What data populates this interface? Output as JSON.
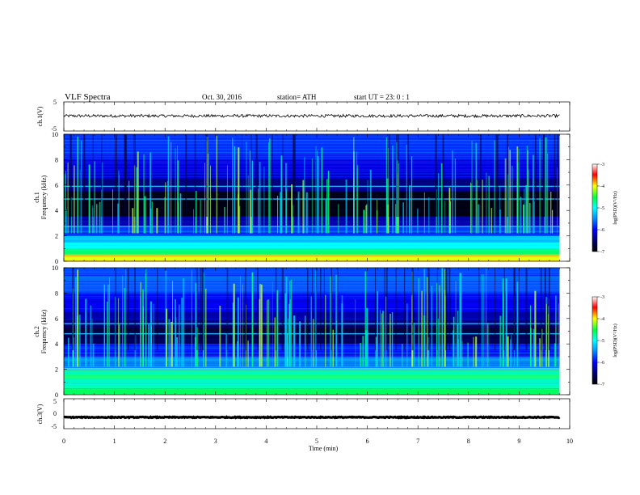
{
  "header": {
    "title": "VLF  Spectra",
    "date": "Oct. 30, 2016",
    "station": "station= ATH",
    "start_ut": "start  UT  =    23: 0   : 1"
  },
  "colors": {
    "scale": [
      "#000000",
      "#00006e",
      "#0000ff",
      "#0090ff",
      "#00ffff",
      "#00ff40",
      "#ffff00",
      "#ff0000",
      "#ffffff"
    ]
  },
  "chart_data": [
    {
      "type": "line",
      "panel": "ch1-waveform",
      "ylabel": "ch.1(V)",
      "ylim": [
        -5,
        5
      ],
      "yticks": [
        "5",
        "-5"
      ],
      "xlim": [
        0,
        10
      ],
      "description_values": {
        "baseline_v": 0.2,
        "noise_amplitude_v": 0.5,
        "data_end_min": 9.8
      }
    },
    {
      "type": "heatmap",
      "panel": "ch1-spectrogram",
      "ylabel": "ch.1\nFrequency  (kHz)",
      "ylim": [
        0,
        10
      ],
      "yticks": [
        "0",
        "2",
        "4",
        "6",
        "8",
        "10"
      ],
      "xlim": [
        0,
        10
      ],
      "data_end_min": 9.8,
      "colorbar": {
        "label": "log(PSD)(V²/Hz)",
        "range": [
          -7,
          -3
        ],
        "ticks": [
          "-3",
          "-4",
          "-5",
          "-6",
          "-7"
        ]
      },
      "bands": [
        {
          "f_min": 0,
          "f_max": 0.5,
          "log_psd": -4.0
        },
        {
          "f_min": 0.5,
          "f_max": 1.0,
          "log_psd": -4.7
        },
        {
          "f_min": 1.0,
          "f_max": 1.5,
          "log_psd": -5.0
        },
        {
          "f_min": 1.5,
          "f_max": 2.0,
          "log_psd": -5.3
        },
        {
          "f_min": 2.0,
          "f_max": 2.8,
          "log_psd": -5.8
        },
        {
          "f_min": 2.8,
          "f_max": 3.5,
          "log_psd": -6.3
        },
        {
          "f_min": 3.5,
          "f_max": 5.5,
          "log_psd": -6.9
        },
        {
          "f_min": 5.5,
          "f_max": 6.5,
          "log_psd": -6.4
        },
        {
          "f_min": 6.5,
          "f_max": 8.0,
          "log_psd": -6.1
        },
        {
          "f_min": 8.0,
          "f_max": 10.0,
          "log_psd": -5.8
        }
      ],
      "lines_khz": [
        5.9,
        4.9,
        2.75
      ]
    },
    {
      "type": "heatmap",
      "panel": "ch2-spectrogram",
      "ylabel": "ch.2\nFrequency  (kHz)",
      "ylim": [
        0,
        10
      ],
      "yticks": [
        "0",
        "2",
        "4",
        "6",
        "8",
        "10"
      ],
      "xlim": [
        0,
        10
      ],
      "data_end_min": 9.8,
      "colorbar": {
        "label": "log(PSD)(V²/Hz)",
        "range": [
          -7,
          -3
        ],
        "ticks": [
          "-3",
          "-4",
          "-5",
          "-6",
          "-7"
        ]
      },
      "bands": [
        {
          "f_min": 0,
          "f_max": 0.5,
          "log_psd": -4.6
        },
        {
          "f_min": 0.5,
          "f_max": 1.0,
          "log_psd": -4.9
        },
        {
          "f_min": 1.0,
          "f_max": 1.9,
          "log_psd": -4.8
        },
        {
          "f_min": 1.9,
          "f_max": 2.1,
          "log_psd": -4.3
        },
        {
          "f_min": 2.1,
          "f_max": 3.0,
          "log_psd": -5.5
        },
        {
          "f_min": 3.0,
          "f_max": 4.0,
          "log_psd": -5.9
        },
        {
          "f_min": 4.0,
          "f_max": 5.5,
          "log_psd": -6.6
        },
        {
          "f_min": 5.5,
          "f_max": 6.5,
          "log_psd": -6.3
        },
        {
          "f_min": 6.5,
          "f_max": 8.0,
          "log_psd": -6.0
        },
        {
          "f_min": 8.0,
          "f_max": 10.0,
          "log_psd": -5.7
        }
      ],
      "lines_khz": [
        5.6,
        4.8,
        2.0
      ]
    },
    {
      "type": "line",
      "panel": "ch3-waveform",
      "ylabel": "ch.3(V)",
      "ylim": [
        -5,
        5
      ],
      "yticks": [
        "5",
        "0",
        "-5"
      ],
      "xlim": [
        0,
        10
      ],
      "description_values": {
        "baseline_v": -1.2,
        "noise_amplitude_v": 0.15,
        "data_end_min": 9.8
      }
    }
  ],
  "xaxis": {
    "label": "Time  (min)",
    "ticks": [
      "0",
      "1",
      "2",
      "3",
      "4",
      "5",
      "6",
      "7",
      "8",
      "9",
      "10"
    ]
  }
}
